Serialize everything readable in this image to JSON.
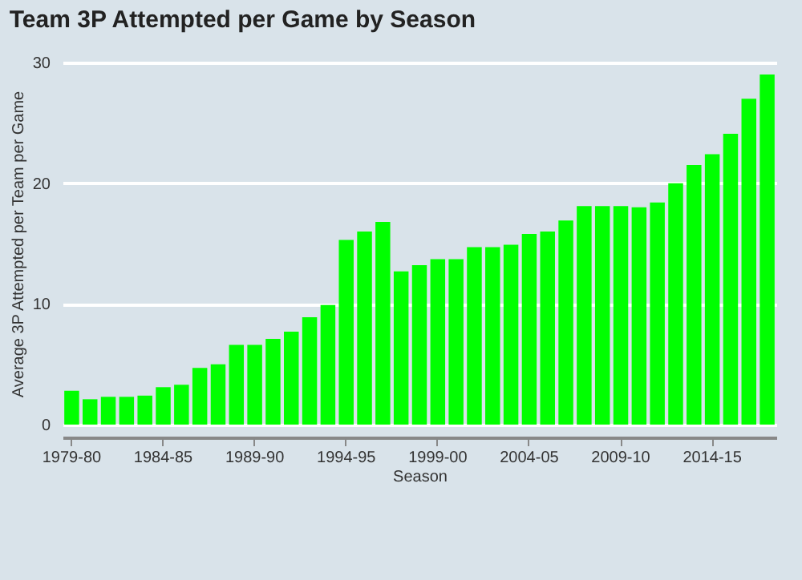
{
  "chart_data": {
    "type": "bar",
    "title": "Team 3P Attempted per Game by Season",
    "xlabel": "Season",
    "ylabel": "Average 3P Attempted per Team per Game",
    "categories": [
      "1979-80",
      null,
      null,
      null,
      null,
      "1984-85",
      null,
      null,
      null,
      null,
      "1989-90",
      null,
      null,
      null,
      null,
      "1994-95",
      null,
      null,
      null,
      null,
      "1999-00",
      null,
      null,
      null,
      null,
      "2004-05",
      null,
      null,
      null,
      null,
      "2009-10",
      null,
      null,
      null,
      null,
      "2014-15",
      null,
      null,
      null
    ],
    "values": [
      2.8,
      2.1,
      2.3,
      2.3,
      2.4,
      3.1,
      3.3,
      4.7,
      5.0,
      6.6,
      6.6,
      7.1,
      7.7,
      8.9,
      9.9,
      15.3,
      16.0,
      16.8,
      12.7,
      13.2,
      13.7,
      13.7,
      14.7,
      14.7,
      14.9,
      15.8,
      16.0,
      16.9,
      18.1,
      18.1,
      18.1,
      18.0,
      18.4,
      20.0,
      21.5,
      22.4,
      24.1,
      27.0,
      29.0
    ],
    "color": "#00ff00",
    "ylim": [
      0,
      30
    ],
    "yticks": [
      0,
      10,
      20,
      30
    ],
    "grid": "y"
  }
}
